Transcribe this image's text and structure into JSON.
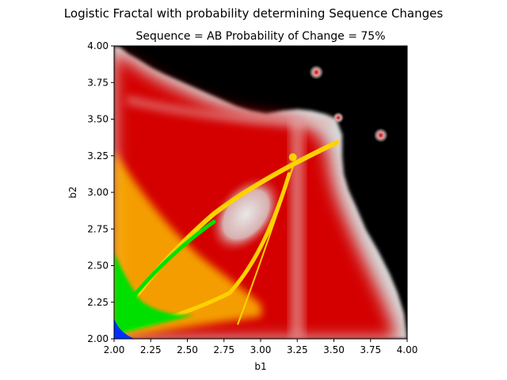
{
  "chart_data": {
    "type": "heatmap",
    "suptitle": "Logistic Fractal with probability determining Sequence Changes",
    "title": "Sequence = AB Probability of Change = 75%",
    "xlabel": "b1",
    "ylabel": "b2",
    "xlim": [
      2.0,
      4.0
    ],
    "ylim": [
      2.0,
      4.0
    ],
    "xticks": [
      2.0,
      2.25,
      2.5,
      2.75,
      3.0,
      3.25,
      3.5,
      3.75,
      4.0
    ],
    "yticks": [
      2.0,
      2.25,
      2.5,
      2.75,
      3.0,
      3.25,
      3.5,
      3.75,
      4.0
    ],
    "xtick_labels": [
      "2.00",
      "2.25",
      "2.50",
      "2.75",
      "3.00",
      "3.25",
      "3.50",
      "3.75",
      "4.00"
    ],
    "ytick_labels": [
      "2.00",
      "2.25",
      "2.50",
      "2.75",
      "3.00",
      "3.25",
      "3.50",
      "3.75",
      "4.00"
    ],
    "colormap": [
      "#000000",
      "#d8d8d8",
      "#d40000",
      "#ffd200",
      "#00e000",
      "#0030ff"
    ],
    "colors": {
      "chaos": "#000000",
      "edge": "#d8d8d8",
      "body": "#d40000",
      "ridge": "#ffd200",
      "core": "#00e000",
      "corner": "#0030ff"
    },
    "features": {
      "upper_spot_1": [
        3.38,
        3.82
      ],
      "upper_spot_2": [
        3.82,
        3.39
      ],
      "upper_spot_3": [
        3.53,
        3.51
      ],
      "tip": [
        3.22,
        3.24
      ],
      "gray_lobe_center": [
        2.9,
        2.85
      ]
    },
    "grid": false,
    "legend": "none"
  }
}
